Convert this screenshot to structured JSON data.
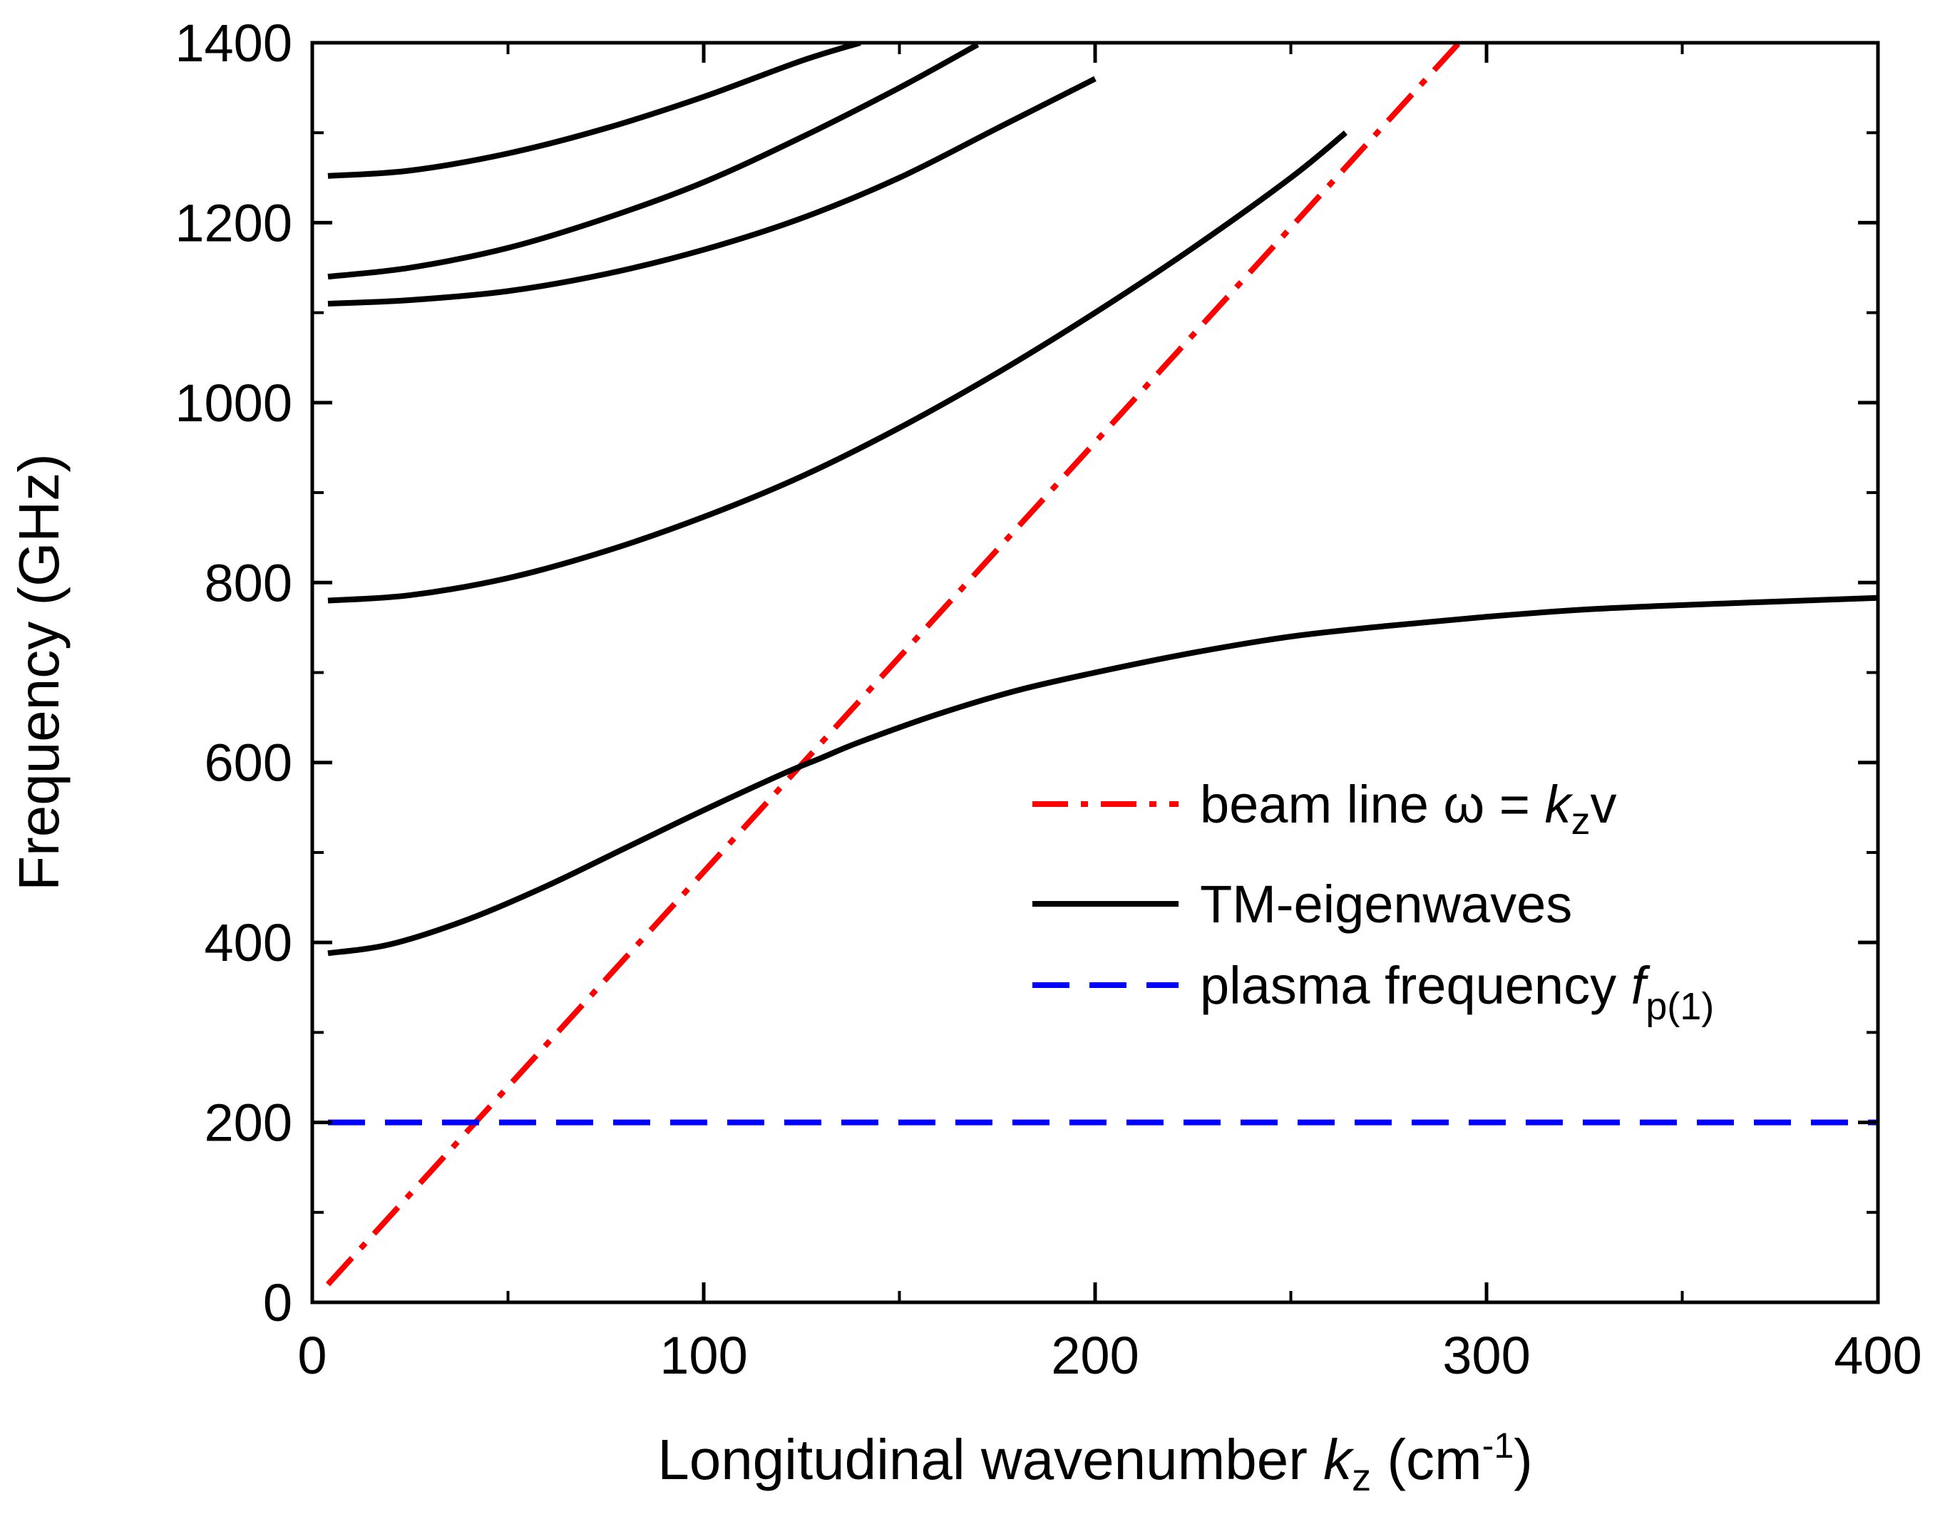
{
  "chart_data": {
    "type": "line",
    "title": "",
    "xlabel": "Longitudinal wavenumber",
    "xlabel_symbol": "k",
    "xlabel_subscript": "z",
    "xlabel_unit_open": "(cm",
    "xlabel_unit_exp": "-1",
    "xlabel_unit_close": ")",
    "ylabel": "Frequency (GHz)",
    "xlim": [
      0,
      400
    ],
    "ylim": [
      0,
      1400
    ],
    "xticks": [
      0,
      100,
      200,
      300,
      400
    ],
    "yticks": [
      0,
      200,
      400,
      600,
      800,
      1000,
      1200,
      1400
    ],
    "grid": false,
    "legend_position": "right-middle",
    "legend": {
      "beam": {
        "text": "beam line ω = ",
        "symbol": "k",
        "sub": "z",
        "tail": "v"
      },
      "tm": {
        "text": "TM-eigenwaves"
      },
      "plasma": {
        "text": "plasma frequency ",
        "symbol": "f",
        "sub": "p(1)"
      }
    },
    "series": [
      {
        "key": "beam",
        "style": "dash-dot",
        "color": "#ff0000",
        "x": [
          4,
          293
        ],
        "y": [
          20,
          1400
        ]
      },
      {
        "key": "tm",
        "style": "solid",
        "color": "#000000",
        "x": [
          4,
          20,
          40,
          60,
          80,
          100,
          120,
          130,
          140,
          160,
          180,
          200,
          225,
          250,
          275,
          300,
          325,
          350,
          375,
          400
        ],
        "y": [
          388,
          398,
          426,
          463,
          505,
          547,
          587,
          605,
          623,
          654,
          680,
          700,
          722,
          740,
          752,
          762,
          770,
          775,
          779,
          783
        ]
      },
      {
        "key": "tm",
        "style": "solid",
        "color": "#000000",
        "x": [
          4,
          25,
          50,
          75,
          100,
          125,
          150,
          175,
          200,
          225,
          250,
          264
        ],
        "y": [
          780,
          786,
          805,
          835,
          873,
          918,
          972,
          1033,
          1100,
          1172,
          1250,
          1300
        ]
      },
      {
        "key": "tm",
        "style": "solid",
        "color": "#000000",
        "x": [
          4,
          25,
          50,
          75,
          100,
          125,
          150,
          175,
          200
        ],
        "y": [
          1110,
          1114,
          1124,
          1143,
          1170,
          1205,
          1250,
          1305,
          1360
        ]
      },
      {
        "key": "tm",
        "style": "solid",
        "color": "#000000",
        "x": [
          4,
          25,
          50,
          75,
          100,
          125,
          150,
          170
        ],
        "y": [
          1140,
          1150,
          1172,
          1205,
          1245,
          1295,
          1350,
          1398
        ]
      },
      {
        "key": "tm",
        "style": "solid",
        "color": "#000000",
        "x": [
          4,
          25,
          50,
          75,
          100,
          125,
          140
        ],
        "y": [
          1252,
          1258,
          1277,
          1305,
          1340,
          1380,
          1400
        ]
      },
      {
        "key": "plasma",
        "style": "dashed",
        "color": "#0000ff",
        "x": [
          4,
          400
        ],
        "y": [
          200,
          200
        ]
      }
    ]
  }
}
